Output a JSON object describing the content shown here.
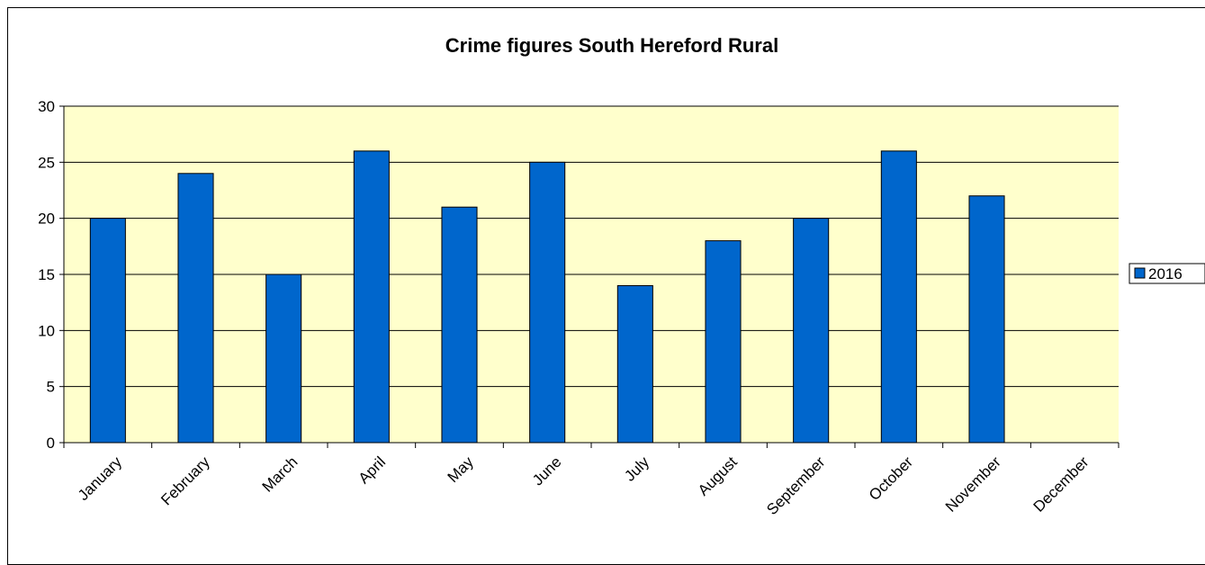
{
  "chart_data": {
    "type": "bar",
    "title": "Crime figures South Hereford Rural",
    "xlabel": "",
    "ylabel": "",
    "categories": [
      "January",
      "February",
      "March",
      "April",
      "May",
      "June",
      "July",
      "August",
      "September",
      "October",
      "November",
      "December"
    ],
    "series": [
      {
        "name": "2016",
        "values": [
          20,
          24,
          15,
          26,
          21,
          25,
          14,
          18,
          20,
          26,
          22,
          null
        ]
      }
    ],
    "ylim": [
      0,
      30
    ],
    "yticks": [
      0,
      5,
      10,
      15,
      20,
      25,
      30
    ],
    "grid": true,
    "legend_position": "right",
    "colors": {
      "bar_fill": "#0066CC",
      "bar_stroke": "#000000",
      "plot_background": "#FFFFCC",
      "gridline": "#000000"
    }
  }
}
